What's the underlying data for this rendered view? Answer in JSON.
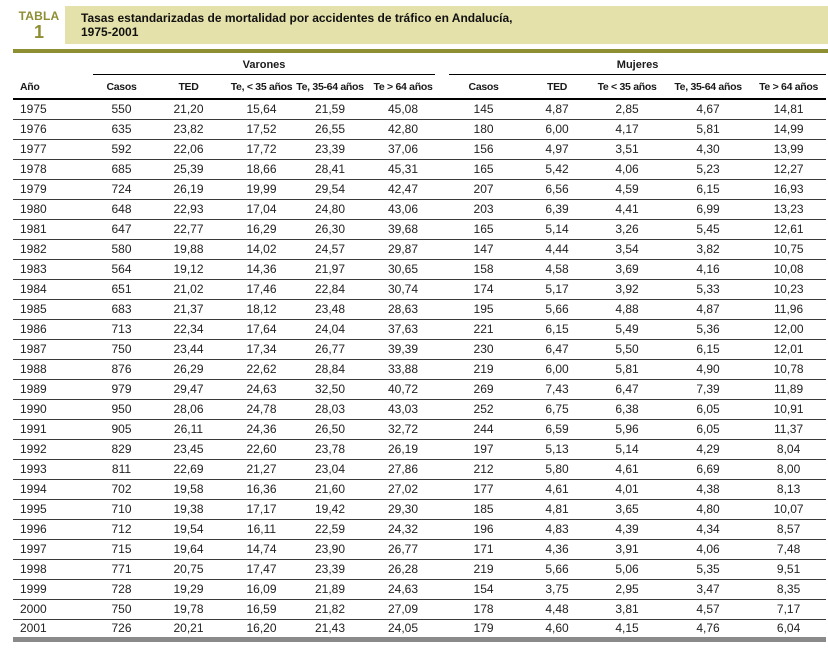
{
  "badge": {
    "label": "TABLA",
    "number": "1"
  },
  "title": {
    "line1": "Tasas estandarizadas de mortalidad por accidentes de tráfico en Andalucía,",
    "line2": "1975-2001"
  },
  "colors": {
    "band_bg": "#e5e1aa",
    "accent_olive": "#8e8e33",
    "bottom_bar": "#8a8a8a",
    "text": "#1a1a1a"
  },
  "table": {
    "row_header": "Año",
    "groups": [
      {
        "label": "Varones",
        "columns": [
          "Casos",
          "TED",
          "Te, < 35 años",
          "Te, 35-64 años",
          "Te > 64 años"
        ]
      },
      {
        "label": "Mujeres",
        "columns": [
          "Casos",
          "TED",
          "Te < 35 años",
          "Te, 35-64 años",
          "Te > 64 años"
        ]
      }
    ],
    "rows": [
      [
        "1975",
        "550",
        "21,20",
        "15,64",
        "21,59",
        "45,08",
        "145",
        "4,87",
        "2,85",
        "4,67",
        "14,81"
      ],
      [
        "1976",
        "635",
        "23,82",
        "17,52",
        "26,55",
        "42,80",
        "180",
        "6,00",
        "4,17",
        "5,81",
        "14,99"
      ],
      [
        "1977",
        "592",
        "22,06",
        "17,72",
        "23,39",
        "37,06",
        "156",
        "4,97",
        "3,51",
        "4,30",
        "13,99"
      ],
      [
        "1978",
        "685",
        "25,39",
        "18,66",
        "28,41",
        "45,31",
        "165",
        "5,42",
        "4,06",
        "5,23",
        "12,27"
      ],
      [
        "1979",
        "724",
        "26,19",
        "19,99",
        "29,54",
        "42,47",
        "207",
        "6,56",
        "4,59",
        "6,15",
        "16,93"
      ],
      [
        "1980",
        "648",
        "22,93",
        "17,04",
        "24,80",
        "43,06",
        "203",
        "6,39",
        "4,41",
        "6,99",
        "13,23"
      ],
      [
        "1981",
        "647",
        "22,77",
        "16,29",
        "26,30",
        "39,68",
        "165",
        "5,14",
        "3,26",
        "5,45",
        "12,61"
      ],
      [
        "1982",
        "580",
        "19,88",
        "14,02",
        "24,57",
        "29,87",
        "147",
        "4,44",
        "3,54",
        "3,82",
        "10,75"
      ],
      [
        "1983",
        "564",
        "19,12",
        "14,36",
        "21,97",
        "30,65",
        "158",
        "4,58",
        "3,69",
        "4,16",
        "10,08"
      ],
      [
        "1984",
        "651",
        "21,02",
        "17,46",
        "22,84",
        "30,74",
        "174",
        "5,17",
        "3,92",
        "5,33",
        "10,23"
      ],
      [
        "1985",
        "683",
        "21,37",
        "18,12",
        "23,48",
        "28,63",
        "195",
        "5,66",
        "4,88",
        "4,87",
        "11,96"
      ],
      [
        "1986",
        "713",
        "22,34",
        "17,64",
        "24,04",
        "37,63",
        "221",
        "6,15",
        "5,49",
        "5,36",
        "12,00"
      ],
      [
        "1987",
        "750",
        "23,44",
        "17,34",
        "26,77",
        "39,39",
        "230",
        "6,47",
        "5,50",
        "6,15",
        "12,01"
      ],
      [
        "1988",
        "876",
        "26,29",
        "22,62",
        "28,84",
        "33,88",
        "219",
        "6,00",
        "5,81",
        "4,90",
        "10,78"
      ],
      [
        "1989",
        "979",
        "29,47",
        "24,63",
        "32,50",
        "40,72",
        "269",
        "7,43",
        "6,47",
        "7,39",
        "11,89"
      ],
      [
        "1990",
        "950",
        "28,06",
        "24,78",
        "28,03",
        "43,03",
        "252",
        "6,75",
        "6,38",
        "6,05",
        "10,91"
      ],
      [
        "1991",
        "905",
        "26,11",
        "24,36",
        "26,50",
        "32,72",
        "244",
        "6,59",
        "5,96",
        "6,05",
        "11,37"
      ],
      [
        "1992",
        "829",
        "23,45",
        "22,60",
        "23,78",
        "26,19",
        "197",
        "5,13",
        "5,14",
        "4,29",
        "8,04"
      ],
      [
        "1993",
        "811",
        "22,69",
        "21,27",
        "23,04",
        "27,86",
        "212",
        "5,80",
        "4,61",
        "6,69",
        "8,00"
      ],
      [
        "1994",
        "702",
        "19,58",
        "16,36",
        "21,60",
        "27,02",
        "177",
        "4,61",
        "4,01",
        "4,38",
        "8,13"
      ],
      [
        "1995",
        "710",
        "19,38",
        "17,17",
        "19,42",
        "29,30",
        "185",
        "4,81",
        "3,65",
        "4,80",
        "10,07"
      ],
      [
        "1996",
        "712",
        "19,54",
        "16,11",
        "22,59",
        "24,32",
        "196",
        "4,83",
        "4,39",
        "4,34",
        "8,57"
      ],
      [
        "1997",
        "715",
        "19,64",
        "14,74",
        "23,90",
        "26,77",
        "171",
        "4,36",
        "3,91",
        "4,06",
        "7,48"
      ],
      [
        "1998",
        "771",
        "20,75",
        "17,47",
        "23,39",
        "26,28",
        "219",
        "5,66",
        "5,06",
        "5,35",
        "9,51"
      ],
      [
        "1999",
        "728",
        "19,29",
        "16,09",
        "21,89",
        "24,63",
        "154",
        "3,75",
        "2,95",
        "3,47",
        "8,35"
      ],
      [
        "2000",
        "750",
        "19,78",
        "16,59",
        "21,82",
        "27,09",
        "178",
        "4,48",
        "3,81",
        "4,57",
        "7,17"
      ],
      [
        "2001",
        "726",
        "20,21",
        "16,20",
        "21,43",
        "24,05",
        "179",
        "4,60",
        "4,15",
        "4,76",
        "6,04"
      ]
    ]
  }
}
